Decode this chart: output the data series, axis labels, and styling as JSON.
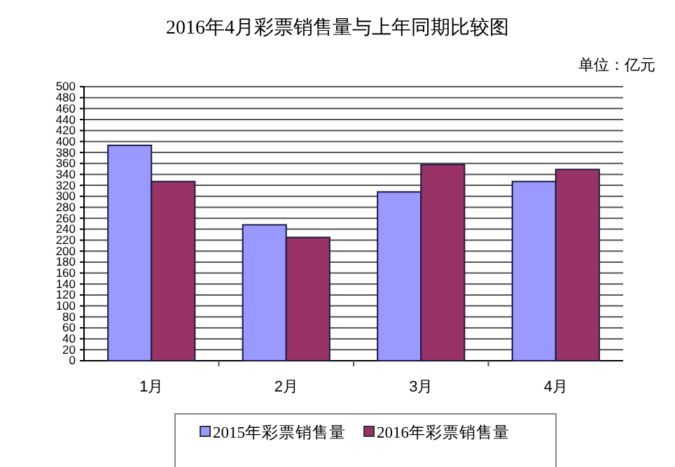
{
  "chart_data": {
    "type": "bar",
    "title": "2016年4月彩票销售量与上年同期比较图",
    "annotations": [
      "单位：亿元"
    ],
    "categories": [
      "1月",
      "2月",
      "3月",
      "4月"
    ],
    "series": [
      {
        "name": "2015年彩票销售量",
        "color": "#9999ff",
        "values": [
          393,
          248,
          308,
          327
        ]
      },
      {
        "name": "2016年彩票销售量",
        "color": "#993366",
        "values": [
          327,
          225,
          358,
          349
        ]
      }
    ],
    "ylim": [
      0,
      500
    ],
    "yticks": [
      0,
      20,
      40,
      60,
      80,
      100,
      120,
      140,
      160,
      180,
      200,
      220,
      240,
      260,
      280,
      300,
      320,
      340,
      360,
      380,
      400,
      420,
      440,
      460,
      480,
      500
    ],
    "grid": "y",
    "legend": "bottom"
  }
}
